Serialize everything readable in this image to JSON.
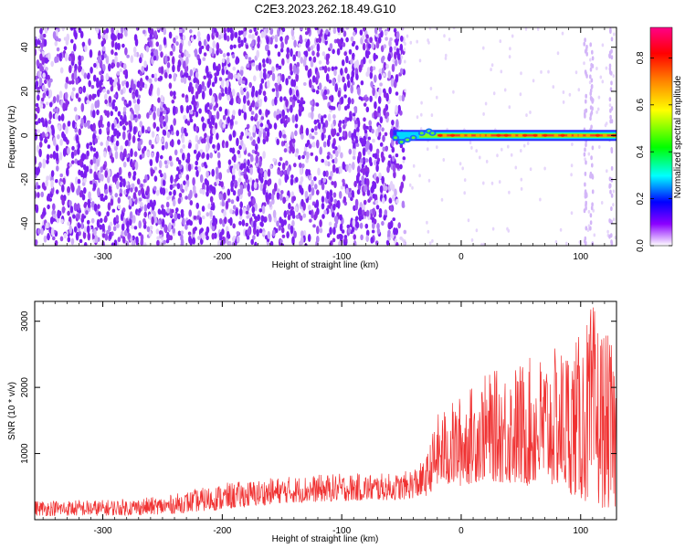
{
  "title": "C2E3.2023.262.18.49.G10",
  "chart_data": [
    {
      "type": "heatmap",
      "xlabel": "Height of straight line (km)",
      "ylabel": "Frequency (Hz)",
      "xlim": [
        -357,
        130
      ],
      "ylim": [
        -50,
        49
      ],
      "xticks": [
        -300,
        -200,
        -100,
        0,
        100
      ],
      "yticks": [
        -40,
        -20,
        0,
        20,
        40
      ],
      "colorbar": {
        "label": "Normalized spectral amplitude",
        "range": [
          0,
          0.93
        ],
        "ticks": [
          0.0,
          0.2,
          0.4,
          0.6,
          0.8
        ]
      },
      "noise_region_x": [
        -357,
        -50
      ],
      "signal_line": {
        "frequency_hz": 0,
        "x_start": -57,
        "x_end": 130,
        "peak_normalized_amplitude": 0.93
      }
    },
    {
      "type": "line",
      "xlabel": "Height of straight line (km)",
      "ylabel": "SNR (10 * v/v)",
      "xlim": [
        -357,
        130
      ],
      "ylim": [
        0,
        3300
      ],
      "xticks": [
        -300,
        -200,
        -100,
        0,
        100
      ],
      "yticks": [
        1000,
        2000,
        3000
      ],
      "series_color": "#f03232",
      "envelope": [
        {
          "x": -357,
          "low": 60,
          "high": 300
        },
        {
          "x": -300,
          "low": 60,
          "high": 300
        },
        {
          "x": -250,
          "low": 80,
          "high": 350
        },
        {
          "x": -200,
          "low": 150,
          "high": 550
        },
        {
          "x": -150,
          "low": 250,
          "high": 650
        },
        {
          "x": -100,
          "low": 280,
          "high": 700
        },
        {
          "x": -50,
          "low": 300,
          "high": 700
        },
        {
          "x": -30,
          "low": 350,
          "high": 900
        },
        {
          "x": -20,
          "low": 500,
          "high": 1600
        },
        {
          "x": 0,
          "low": 500,
          "high": 1900
        },
        {
          "x": 20,
          "low": 600,
          "high": 2200
        },
        {
          "x": 50,
          "low": 500,
          "high": 2400
        },
        {
          "x": 80,
          "low": 500,
          "high": 2600
        },
        {
          "x": 100,
          "low": 300,
          "high": 2800
        },
        {
          "x": 110,
          "low": 200,
          "high": 3300
        },
        {
          "x": 130,
          "low": 150,
          "high": 2500
        }
      ]
    }
  ]
}
